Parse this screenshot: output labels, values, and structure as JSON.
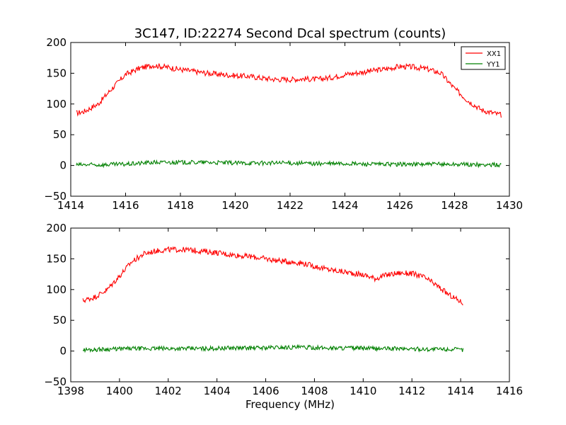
{
  "title": "3C147, ID:22274 Second Dcal spectrum (counts)",
  "colors": {
    "XX1": "#ff0000",
    "YY1": "#008000",
    "axes": "#000000",
    "background": "#ffffff"
  },
  "chart_data": [
    {
      "type": "line",
      "title": "3C147, ID:22274 Second Dcal spectrum (counts)",
      "xlabel": "",
      "ylabel": "",
      "xlim": [
        1414,
        1430
      ],
      "ylim": [
        -50,
        200
      ],
      "xticks": [
        1414,
        1416,
        1418,
        1420,
        1422,
        1424,
        1426,
        1428,
        1430
      ],
      "yticks": [
        -50,
        0,
        50,
        100,
        150,
        200
      ],
      "grid": false,
      "legend": {
        "placement": "top-right",
        "entries": [
          "XX1",
          "YY1"
        ]
      },
      "series": [
        {
          "name": "XX1",
          "color": "#ff0000",
          "x": [
            1414.2,
            1414.5,
            1415.0,
            1415.5,
            1416.0,
            1416.5,
            1417.0,
            1417.5,
            1418.0,
            1418.5,
            1419.0,
            1419.5,
            1420.0,
            1420.5,
            1421.0,
            1421.5,
            1422.0,
            1422.5,
            1423.0,
            1423.5,
            1424.0,
            1424.5,
            1425.0,
            1425.5,
            1426.0,
            1426.5,
            1427.0,
            1427.5,
            1428.0,
            1428.5,
            1429.0,
            1429.7
          ],
          "values": [
            85,
            88,
            100,
            125,
            148,
            158,
            163,
            160,
            156,
            153,
            150,
            148,
            146,
            145,
            142,
            140,
            140,
            141,
            140,
            143,
            148,
            151,
            154,
            157,
            161,
            160,
            157,
            150,
            125,
            105,
            90,
            82
          ]
        },
        {
          "name": "YY1",
          "color": "#008000",
          "x": [
            1414.2,
            1415.0,
            1416.0,
            1417.0,
            1418.0,
            1419.0,
            1420.0,
            1421.0,
            1422.0,
            1423.0,
            1424.0,
            1425.0,
            1426.0,
            1427.0,
            1428.0,
            1429.0,
            1429.7
          ],
          "values": [
            1,
            1,
            2,
            5,
            5,
            5,
            4,
            4,
            4,
            3,
            3,
            2,
            2,
            2,
            2,
            1,
            1
          ]
        }
      ]
    },
    {
      "type": "line",
      "title": "",
      "xlabel": "Frequency (MHz)",
      "ylabel": "",
      "xlim": [
        1398,
        1416
      ],
      "ylim": [
        -50,
        200
      ],
      "xticks": [
        1398,
        1400,
        1402,
        1404,
        1406,
        1408,
        1410,
        1412,
        1414,
        1416
      ],
      "yticks": [
        -50,
        0,
        50,
        100,
        150,
        200
      ],
      "grid": false,
      "series": [
        {
          "name": "XX1",
          "color": "#ff0000",
          "x": [
            1398.5,
            1399.0,
            1399.5,
            1400.0,
            1400.5,
            1401.0,
            1401.5,
            1402.0,
            1402.5,
            1403.0,
            1403.5,
            1404.0,
            1404.5,
            1405.0,
            1405.5,
            1406.0,
            1406.5,
            1407.0,
            1407.5,
            1408.0,
            1408.5,
            1409.0,
            1409.5,
            1410.0,
            1410.5,
            1411.0,
            1411.5,
            1412.0,
            1412.5,
            1413.0,
            1413.5,
            1414.1
          ],
          "values": [
            82,
            88,
            100,
            122,
            145,
            158,
            163,
            165,
            165,
            164,
            162,
            160,
            157,
            155,
            153,
            150,
            147,
            145,
            143,
            138,
            133,
            130,
            127,
            124,
            118,
            124,
            127,
            126,
            120,
            107,
            92,
            78
          ]
        },
        {
          "name": "YY1",
          "color": "#008000",
          "x": [
            1398.5,
            1399.5,
            1400.5,
            1401.5,
            1402.5,
            1403.5,
            1404.5,
            1405.5,
            1406.5,
            1407.5,
            1408.5,
            1409.5,
            1410.5,
            1411.5,
            1412.5,
            1413.5,
            1414.1
          ],
          "values": [
            2,
            3,
            4,
            4,
            4,
            4,
            5,
            5,
            6,
            6,
            5,
            5,
            4,
            4,
            3,
            3,
            2
          ]
        }
      ]
    }
  ]
}
